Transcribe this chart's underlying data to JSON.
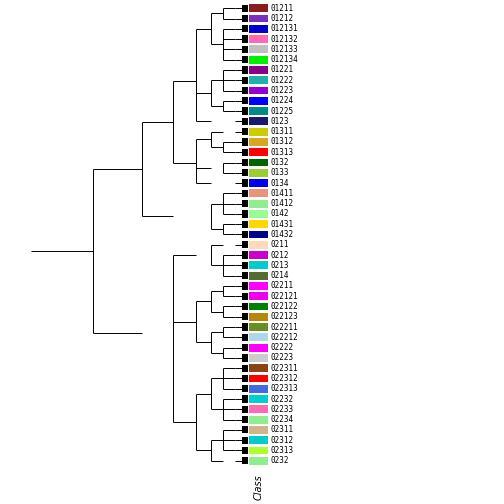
{
  "labels_top_to_bottom": [
    "01211",
    "01212",
    "012131",
    "012132",
    "012133",
    "012134",
    "01221",
    "01222",
    "01223",
    "01224",
    "01225",
    "0123",
    "01311",
    "01312",
    "01313",
    "0132",
    "0133",
    "0134",
    "01411",
    "01412",
    "0142",
    "01431",
    "01432",
    "0211",
    "0212",
    "0213",
    "0214",
    "02211",
    "022121",
    "022122",
    "022123",
    "022211",
    "022212",
    "02222",
    "02223",
    "022311",
    "022312",
    "022313",
    "02232",
    "02233",
    "02234",
    "02311",
    "02312",
    "02313",
    "0232"
  ],
  "label_colors": {
    "01211": "#8B1C1C",
    "01212": "#7B2FBE",
    "012131": "#0000CD",
    "012132": "#FF69B4",
    "012133": "#C0C0C0",
    "012134": "#00EE00",
    "01221": "#8B008B",
    "01222": "#20B2AA",
    "01223": "#9400D3",
    "01224": "#0000FF",
    "01225": "#008B8B",
    "0123": "#191970",
    "01311": "#CCCC00",
    "01312": "#DAA520",
    "01313": "#FF0000",
    "0132": "#006400",
    "0133": "#9ACD32",
    "0134": "#0000EE",
    "01411": "#E8967A",
    "01412": "#90EE90",
    "0142": "#98FB98",
    "01431": "#FFD700",
    "01432": "#00008B",
    "0211": "#FFDAB9",
    "0212": "#CC00CC",
    "0213": "#00CCCC",
    "0214": "#556B2F",
    "02211": "#FF00FF",
    "022121": "#EE00EE",
    "022122": "#008000",
    "022123": "#B8860B",
    "022211": "#6B8E23",
    "022212": "#ADD8E6",
    "02222": "#FF00FF",
    "02223": "#CCCCCC",
    "022311": "#8B4513",
    "022312": "#FF0000",
    "022313": "#4169E1",
    "02232": "#00CED1",
    "02233": "#FF69B4",
    "02234": "#90EE90",
    "02311": "#D2B48C",
    "02312": "#00CCCC",
    "02313": "#ADFF2F",
    "0232": "#90EE90"
  },
  "big_box_colors": {
    "01411": "#E8967A",
    "01412": "#E8967A",
    "0142": "#E8967A",
    "01431": "#FFD700",
    "01432": "#FFD700",
    "0212": "#CC00CC",
    "0213": "#00CCCC",
    "0214": "#556B2F"
  },
  "figsize": [
    5.04,
    5.04
  ],
  "dpi": 100,
  "line_color": "#000000",
  "line_lw": 0.7,
  "label_fontsize": 5.5,
  "xlabel": "Class",
  "xlabel_fontsize": 7
}
